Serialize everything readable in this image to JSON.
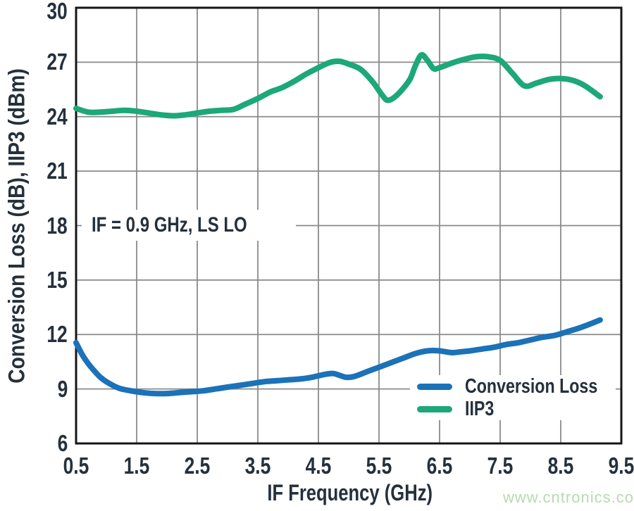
{
  "page": {
    "background": "#ffffff"
  },
  "watermark": {
    "text": "www.cntronics.com",
    "color": "#b5dcae"
  },
  "chart_data": {
    "type": "line",
    "title": "",
    "xlabel": "IF Frequency (GHz)",
    "ylabel": "Conversion Loss (dB), IIP3 (dBm)",
    "annotation": "IF = 0.9 GHz, LS LO",
    "xlim": [
      0.5,
      9.5
    ],
    "ylim": [
      6,
      30
    ],
    "x_ticks": [
      0.5,
      1.5,
      2.5,
      3.5,
      4.5,
      5.5,
      6.5,
      7.5,
      8.5,
      9.5
    ],
    "x_tick_labels": [
      "0.5",
      "1.5",
      "2.5",
      "3.5",
      "4.5",
      "5.5",
      "6.5",
      "7.5",
      "8.5",
      "9.5"
    ],
    "y_ticks": [
      6,
      9,
      12,
      15,
      18,
      21,
      24,
      27,
      30
    ],
    "y_tick_labels": [
      "6",
      "9",
      "12",
      "15",
      "18",
      "21",
      "24",
      "27",
      "30"
    ],
    "grid": true,
    "legend_position": "lower right",
    "colors": {
      "conversion_loss": "#1b72b8",
      "iip3": "#1ca878",
      "grid": "#8a8a8a",
      "axis": "#161616",
      "text": "#25303c"
    },
    "series": [
      {
        "name": "Conversion Loss",
        "color_key": "conversion_loss",
        "x": [
          0.5,
          0.6,
          0.7,
          0.8,
          0.9,
          1.0,
          1.2,
          1.4,
          1.6,
          1.8,
          2.0,
          2.2,
          2.4,
          2.6,
          2.8,
          3.0,
          3.2,
          3.4,
          3.6,
          3.8,
          4.0,
          4.2,
          4.4,
          4.6,
          4.75,
          4.95,
          5.1,
          5.3,
          5.5,
          5.7,
          5.9,
          6.1,
          6.3,
          6.5,
          6.7,
          6.85,
          7.0,
          7.2,
          7.4,
          7.6,
          7.8,
          8.0,
          8.2,
          8.4,
          8.6,
          8.8,
          9.0,
          9.15
        ],
        "y": [
          11.55,
          10.9,
          10.4,
          10.0,
          9.65,
          9.4,
          9.05,
          8.9,
          8.8,
          8.75,
          8.75,
          8.8,
          8.85,
          8.9,
          9.0,
          9.1,
          9.2,
          9.3,
          9.4,
          9.45,
          9.5,
          9.55,
          9.65,
          9.8,
          9.85,
          9.65,
          9.7,
          9.95,
          10.2,
          10.45,
          10.7,
          10.95,
          11.1,
          11.1,
          11.0,
          11.05,
          11.1,
          11.2,
          11.3,
          11.45,
          11.55,
          11.7,
          11.85,
          11.95,
          12.15,
          12.35,
          12.6,
          12.8
        ]
      },
      {
        "name": "IIP3",
        "color_key": "iip3",
        "x": [
          0.5,
          0.7,
          0.9,
          1.1,
          1.3,
          1.5,
          1.7,
          1.9,
          2.1,
          2.3,
          2.5,
          2.7,
          2.9,
          3.1,
          3.3,
          3.5,
          3.7,
          3.9,
          4.1,
          4.3,
          4.5,
          4.7,
          4.85,
          5.0,
          5.2,
          5.4,
          5.55,
          5.65,
          5.8,
          6.0,
          6.1,
          6.2,
          6.3,
          6.4,
          6.5,
          6.7,
          6.9,
          7.1,
          7.3,
          7.5,
          7.7,
          7.9,
          8.1,
          8.3,
          8.5,
          8.7,
          8.9,
          9.15
        ],
        "y": [
          24.45,
          24.25,
          24.25,
          24.3,
          24.35,
          24.3,
          24.2,
          24.1,
          24.05,
          24.1,
          24.2,
          24.3,
          24.35,
          24.4,
          24.7,
          25.0,
          25.35,
          25.6,
          25.95,
          26.35,
          26.7,
          27.0,
          27.05,
          26.9,
          26.6,
          25.9,
          25.2,
          24.9,
          25.2,
          26.0,
          26.8,
          27.4,
          27.1,
          26.65,
          26.7,
          26.95,
          27.15,
          27.3,
          27.3,
          27.1,
          26.4,
          25.7,
          25.85,
          26.05,
          26.1,
          26.0,
          25.7,
          25.1
        ]
      }
    ]
  }
}
